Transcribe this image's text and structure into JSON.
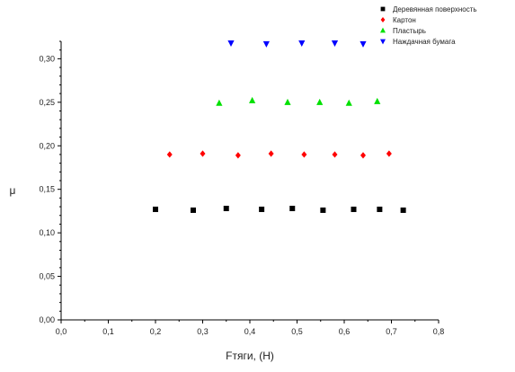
{
  "chart_data": {
    "type": "scatter",
    "xlabel": "Fтяги, (Н)",
    "ylabel": "μ",
    "xlim": [
      0.0,
      0.8
    ],
    "ylim": [
      0.0,
      0.32
    ],
    "x_ticks": [
      "0,0",
      "0,1",
      "0,2",
      "0,3",
      "0,4",
      "0,5",
      "0,6",
      "0,7",
      "0,8"
    ],
    "y_ticks": [
      "0,00",
      "0,05",
      "0,10",
      "0,15",
      "0,20",
      "0,25",
      "0,30"
    ],
    "legend_position": "top-right",
    "series": [
      {
        "name": "Деревянная поверхность",
        "color": "#000000",
        "marker": "square",
        "points": [
          [
            0.2,
            0.127
          ],
          [
            0.28,
            0.126
          ],
          [
            0.35,
            0.128
          ],
          [
            0.425,
            0.127
          ],
          [
            0.49,
            0.128
          ],
          [
            0.555,
            0.126
          ],
          [
            0.62,
            0.127
          ],
          [
            0.675,
            0.127
          ],
          [
            0.725,
            0.126
          ]
        ]
      },
      {
        "name": "Картон",
        "color": "#ff0000",
        "marker": "diamond",
        "points": [
          [
            0.23,
            0.19
          ],
          [
            0.3,
            0.191
          ],
          [
            0.375,
            0.189
          ],
          [
            0.445,
            0.191
          ],
          [
            0.515,
            0.19
          ],
          [
            0.58,
            0.19
          ],
          [
            0.64,
            0.189
          ],
          [
            0.695,
            0.191
          ]
        ]
      },
      {
        "name": "Пластырь",
        "color": "#00e000",
        "marker": "triangle-up",
        "points": [
          [
            0.335,
            0.249
          ],
          [
            0.405,
            0.252
          ],
          [
            0.48,
            0.25
          ],
          [
            0.548,
            0.25
          ],
          [
            0.61,
            0.249
          ],
          [
            0.67,
            0.251
          ]
        ]
      },
      {
        "name": "Наждачная бумага",
        "color": "#0000ff",
        "marker": "triangle-down",
        "points": [
          [
            0.36,
            0.318
          ],
          [
            0.435,
            0.317
          ],
          [
            0.51,
            0.318
          ],
          [
            0.58,
            0.318
          ],
          [
            0.64,
            0.317
          ]
        ]
      }
    ]
  }
}
